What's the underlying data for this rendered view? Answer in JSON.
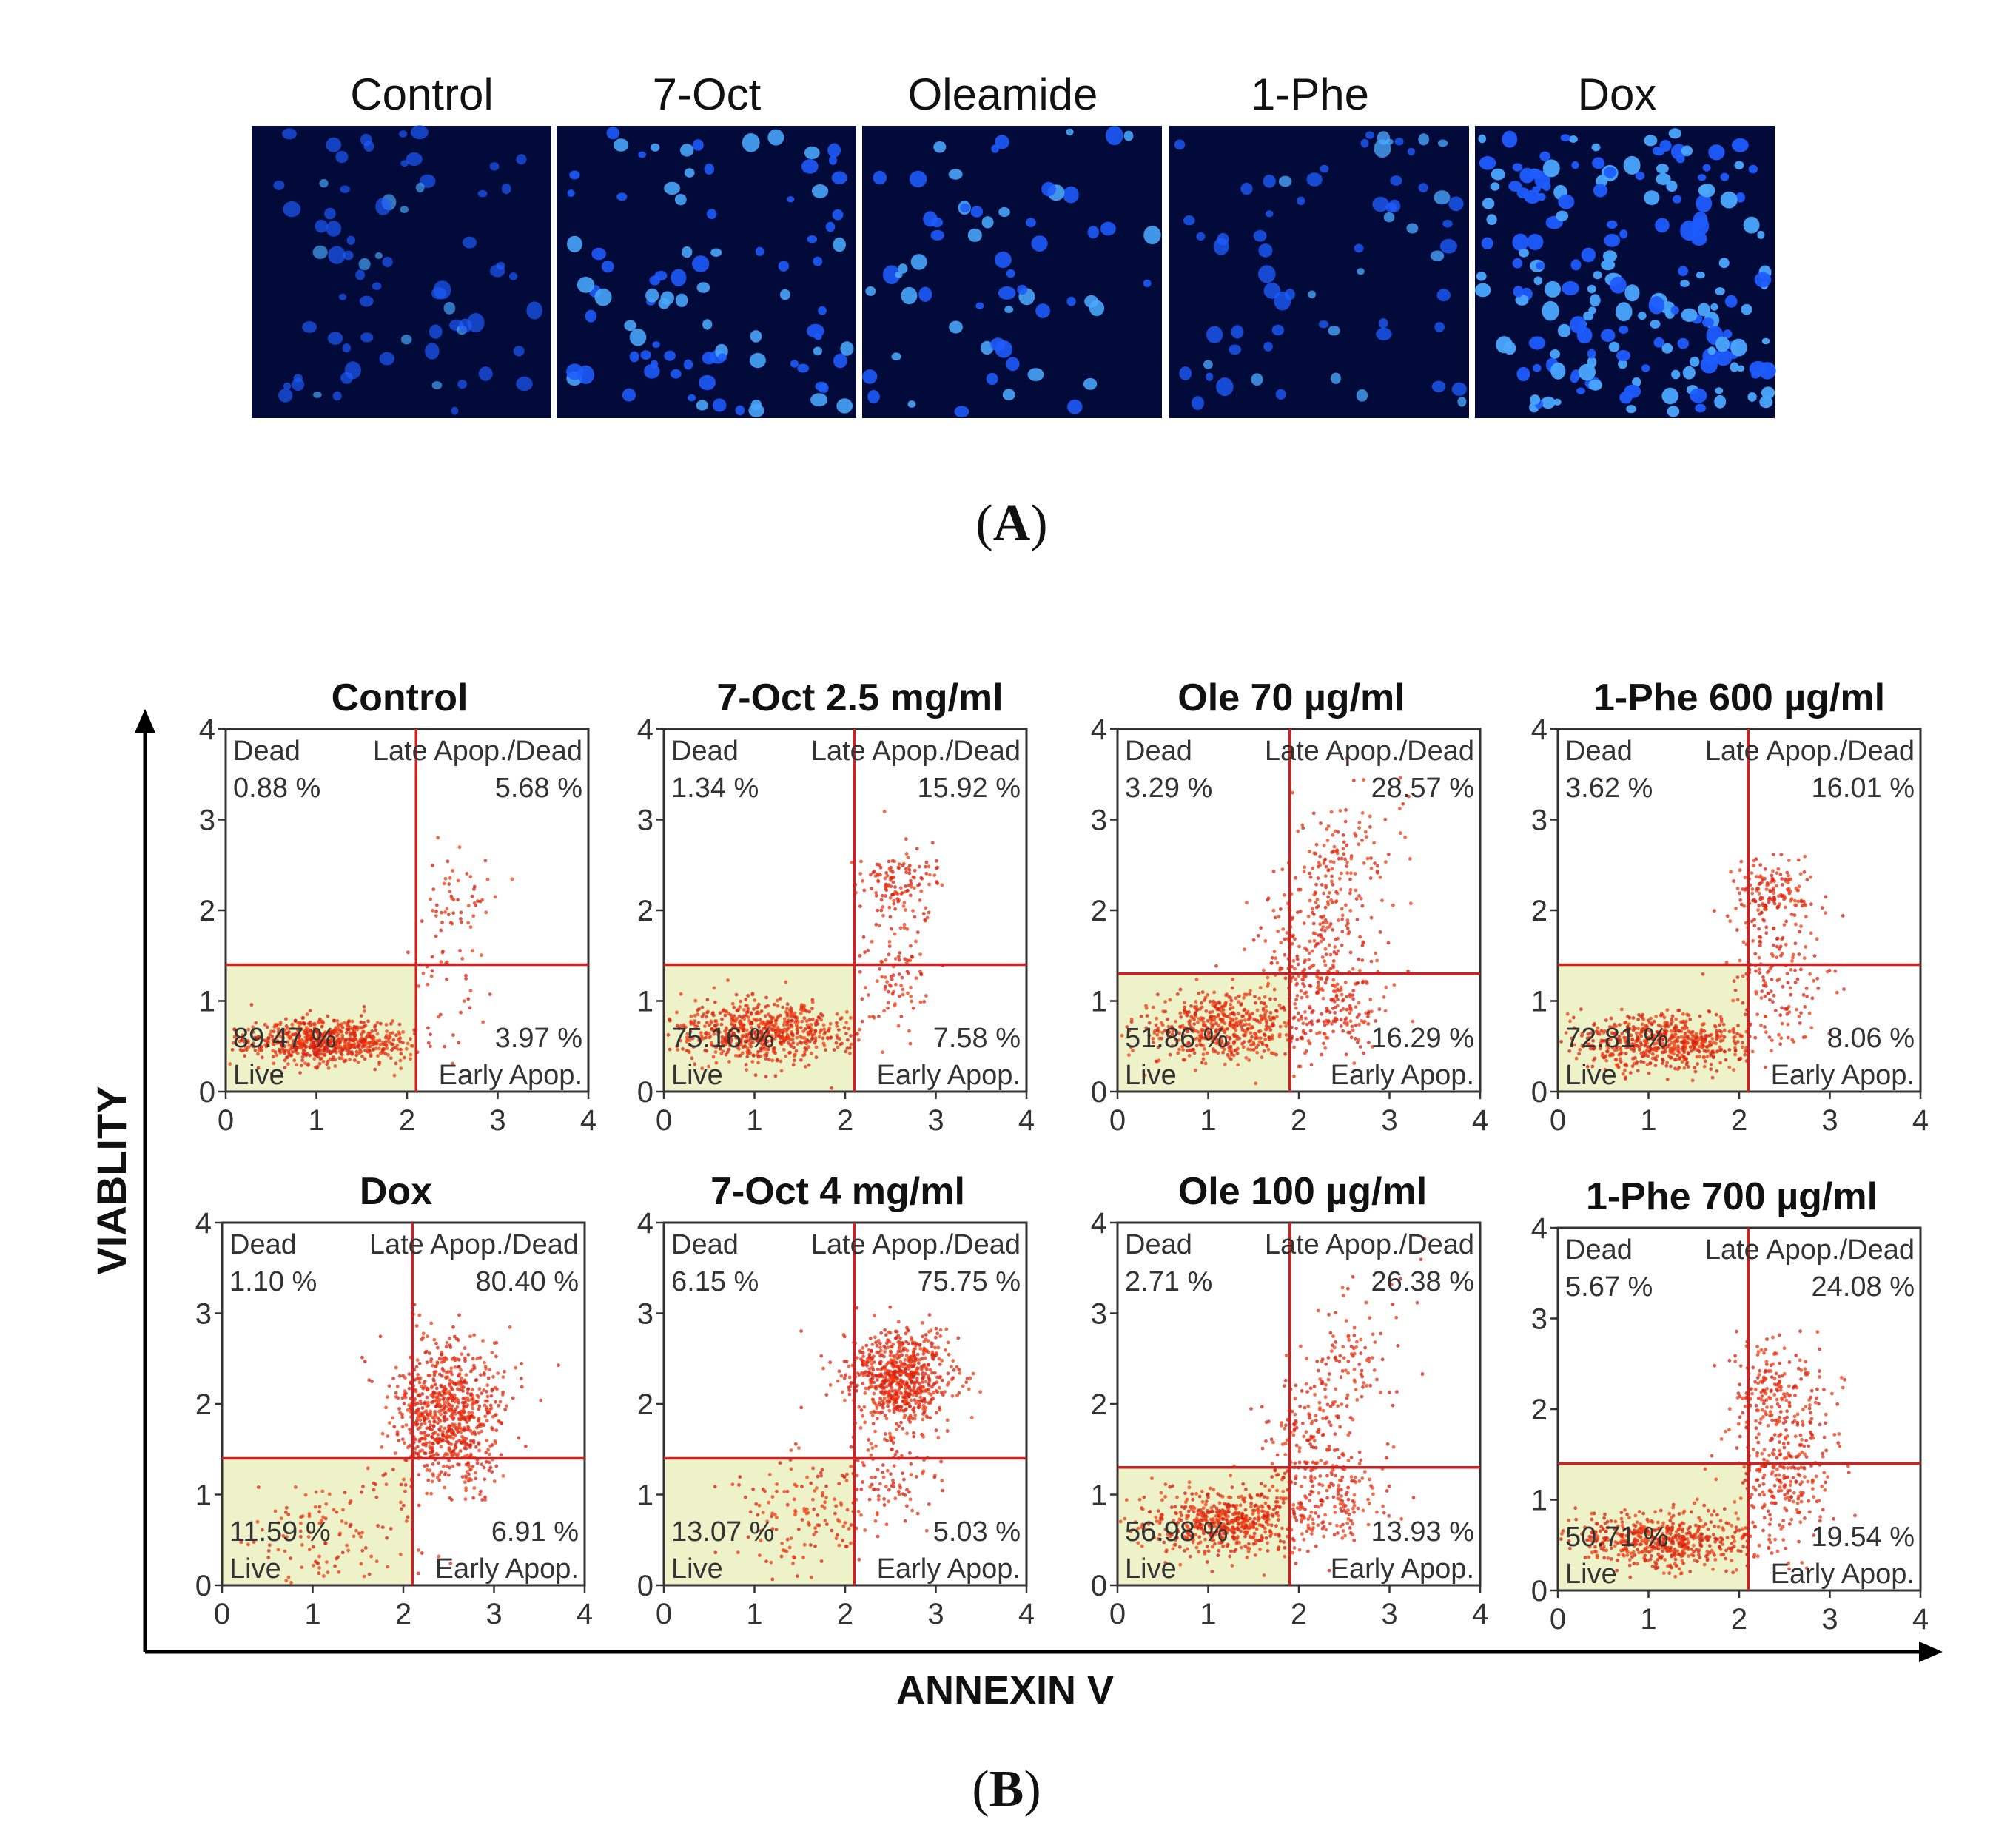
{
  "panel_a": {
    "letter": "A",
    "images": [
      {
        "label": "Control",
        "brightness": 0.45,
        "density": 70
      },
      {
        "label": "7-Oct",
        "brightness": 0.85,
        "density": 90
      },
      {
        "label": "Oleamide",
        "brightness": 0.85,
        "density": 60
      },
      {
        "label": "1-Phe",
        "brightness": 0.65,
        "density": 65
      },
      {
        "label": "Dox",
        "brightness": 1.0,
        "density": 190
      }
    ],
    "colors": {
      "background": "#020a3a",
      "nuclei": "#1e5cff",
      "nuclei_bright": "#4aa8ff"
    }
  },
  "panel_b": {
    "letter": "B",
    "axis_title_y": "VIABLITY",
    "axis_title_x": "ANNEXIN V",
    "colors": {
      "gate": "#cc2222",
      "dots": "#d62010",
      "dots_dense": "#f03a10",
      "live_fill": "#eef2c8"
    },
    "quadrant_labels": {
      "dead": "Dead",
      "late": "Late Apop./Dead",
      "live": "Live",
      "early": "Early Apop."
    },
    "ticks": [
      "0",
      "1",
      "2",
      "3",
      "4"
    ]
  },
  "chart_data": [
    {
      "type": "scatter",
      "title": "Control",
      "xlim": [
        0,
        4
      ],
      "ylim": [
        0,
        4
      ],
      "gate_x": 2.1,
      "gate_y": 1.4,
      "dead_pct": "0.88 %",
      "late_pct": "5.68 %",
      "live_pct": "89.47 %",
      "early_pct": "3.97 %",
      "clusters": [
        {
          "x": 1.1,
          "y": 0.55,
          "sx": 0.45,
          "sy": 0.12,
          "n": 700
        },
        {
          "x": 2.6,
          "y": 2.15,
          "sx": 0.2,
          "sy": 0.25,
          "n": 45
        },
        {
          "x": 2.5,
          "y": 1.3,
          "sx": 0.25,
          "sy": 0.35,
          "n": 40
        }
      ]
    },
    {
      "type": "scatter",
      "title": "7-Oct 2.5 mg/ml",
      "xlim": [
        0,
        4
      ],
      "ylim": [
        0,
        4
      ],
      "gate_x": 2.1,
      "gate_y": 1.4,
      "dead_pct": "1.34 %",
      "late_pct": "15.92 %",
      "live_pct": "75.16 %",
      "early_pct": "7.58 %",
      "clusters": [
        {
          "x": 1.1,
          "y": 0.65,
          "sx": 0.5,
          "sy": 0.18,
          "n": 650
        },
        {
          "x": 2.6,
          "y": 2.3,
          "sx": 0.2,
          "sy": 0.2,
          "n": 120
        },
        {
          "x": 2.6,
          "y": 1.4,
          "sx": 0.2,
          "sy": 0.4,
          "n": 100
        }
      ]
    },
    {
      "type": "scatter",
      "title": "Ole 70 µg/ml",
      "xlim": [
        0,
        4
      ],
      "ylim": [
        0,
        4
      ],
      "gate_x": 1.9,
      "gate_y": 1.3,
      "dead_pct": "3.29 %",
      "late_pct": "28.57 %",
      "live_pct": "51.86 %",
      "early_pct": "16.29 %",
      "clusters": [
        {
          "x": 1.2,
          "y": 0.7,
          "sx": 0.45,
          "sy": 0.2,
          "n": 500
        },
        {
          "x": 2.2,
          "y": 2.0,
          "sx": 0.4,
          "sy": 0.45,
          "n": 300
        },
        {
          "x": 2.4,
          "y": 1.0,
          "sx": 0.3,
          "sy": 0.3,
          "n": 200
        }
      ]
    },
    {
      "type": "scatter",
      "title": "1-Phe 600 µg/ml",
      "xlim": [
        0,
        4
      ],
      "ylim": [
        0,
        4
      ],
      "gate_x": 2.1,
      "gate_y": 1.4,
      "dead_pct": "3.62 %",
      "late_pct": "16.01 %",
      "live_pct": "72.81 %",
      "early_pct": "8.06 %",
      "clusters": [
        {
          "x": 1.2,
          "y": 0.55,
          "sx": 0.5,
          "sy": 0.15,
          "n": 600
        },
        {
          "x": 2.4,
          "y": 2.2,
          "sx": 0.25,
          "sy": 0.2,
          "n": 150
        },
        {
          "x": 2.4,
          "y": 1.3,
          "sx": 0.3,
          "sy": 0.4,
          "n": 150
        }
      ]
    },
    {
      "type": "scatter",
      "title": "Dox",
      "xlim": [
        0,
        4
      ],
      "ylim": [
        0,
        4
      ],
      "gate_x": 2.1,
      "gate_y": 1.4,
      "dead_pct": "1.10 %",
      "late_pct": "80.40 %",
      "live_pct": "11.59 %",
      "early_pct": "6.91 %",
      "clusters": [
        {
          "x": 2.5,
          "y": 1.9,
          "sx": 0.3,
          "sy": 0.4,
          "n": 800
        },
        {
          "x": 1.2,
          "y": 0.6,
          "sx": 0.5,
          "sy": 0.3,
          "n": 120
        }
      ]
    },
    {
      "type": "scatter",
      "title": "7-Oct 4 mg/ml",
      "xlim": [
        0,
        4
      ],
      "ylim": [
        0,
        4
      ],
      "gate_x": 2.1,
      "gate_y": 1.4,
      "dead_pct": "6.15 %",
      "late_pct": "75.75 %",
      "live_pct": "13.07 %",
      "early_pct": "5.03 %",
      "clusters": [
        {
          "x": 2.6,
          "y": 2.3,
          "sx": 0.3,
          "sy": 0.25,
          "n": 700
        },
        {
          "x": 1.6,
          "y": 0.8,
          "sx": 0.4,
          "sy": 0.3,
          "n": 150
        },
        {
          "x": 2.5,
          "y": 1.3,
          "sx": 0.25,
          "sy": 0.35,
          "n": 100
        }
      ]
    },
    {
      "type": "scatter",
      "title": "Ole 100 µg/ml",
      "xlim": [
        0,
        4
      ],
      "ylim": [
        0,
        4
      ],
      "gate_x": 1.9,
      "gate_y": 1.3,
      "dead_pct": "2.71 %",
      "late_pct": "26.38 %",
      "live_pct": "56.98 %",
      "early_pct": "13.93 %",
      "clusters": [
        {
          "x": 1.2,
          "y": 0.7,
          "sx": 0.45,
          "sy": 0.18,
          "n": 550
        },
        {
          "x": 2.3,
          "y": 2.0,
          "sx": 0.4,
          "sy": 0.45,
          "n": 260
        },
        {
          "x": 2.4,
          "y": 1.0,
          "sx": 0.3,
          "sy": 0.3,
          "n": 160
        }
      ]
    },
    {
      "type": "scatter",
      "title": "1-Phe 700 µg/ml",
      "xlim": [
        0,
        4
      ],
      "ylim": [
        0,
        4
      ],
      "gate_x": 2.1,
      "gate_y": 1.4,
      "dead_pct": "5.67 %",
      "late_pct": "24.08 %",
      "live_pct": "50.71 %",
      "early_pct": "19.54 %",
      "clusters": [
        {
          "x": 1.2,
          "y": 0.55,
          "sx": 0.5,
          "sy": 0.15,
          "n": 550
        },
        {
          "x": 2.4,
          "y": 2.2,
          "sx": 0.3,
          "sy": 0.3,
          "n": 200
        },
        {
          "x": 2.5,
          "y": 1.3,
          "sx": 0.3,
          "sy": 0.35,
          "n": 250
        }
      ]
    }
  ]
}
